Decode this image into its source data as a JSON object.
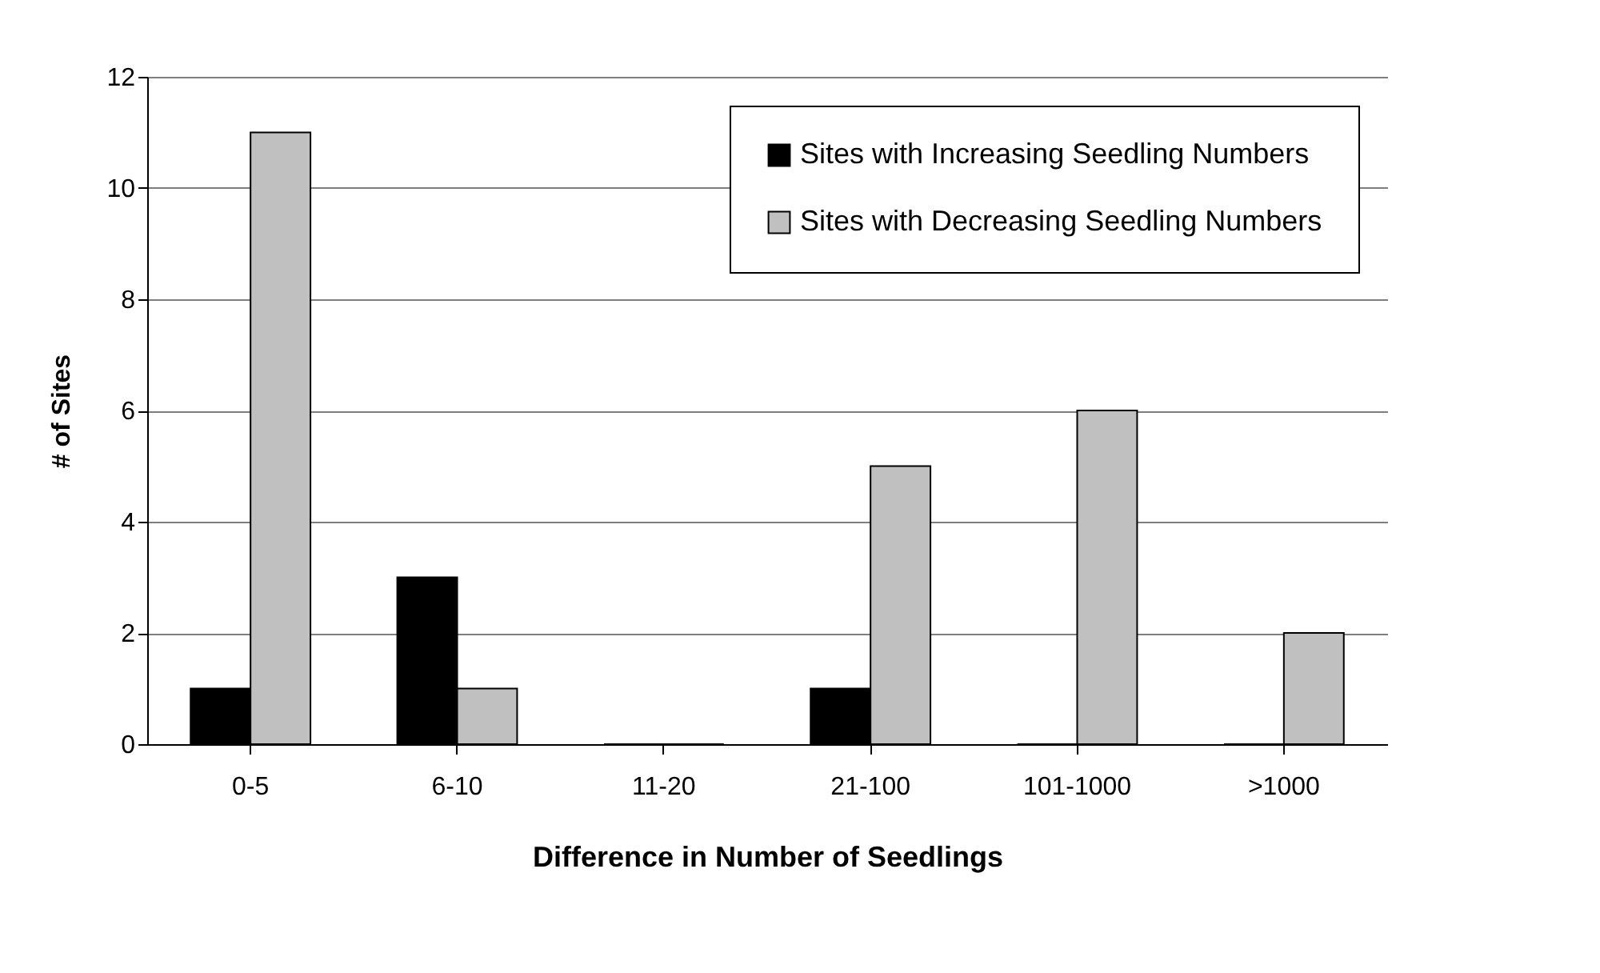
{
  "chart_data": {
    "type": "bar",
    "xlabel": "Difference in Number of Seedlings",
    "ylabel": "# of Sites",
    "categories": [
      "0-5",
      "6-10",
      "11-20",
      "21-100",
      "101-1000",
      ">1000"
    ],
    "series": [
      {
        "name": "Sites with Increasing Seedling Numbers",
        "color": "#000000",
        "values": [
          1,
          3,
          0,
          1,
          0,
          0
        ]
      },
      {
        "name": "Sites with Decreasing Seedling Numbers",
        "color": "#c0c0c0",
        "values": [
          11,
          1,
          0,
          5,
          6,
          2
        ]
      }
    ],
    "ylim": [
      0,
      12
    ],
    "yticks": [
      0,
      2,
      4,
      6,
      8,
      10,
      12
    ],
    "grid": "y",
    "legend": "top right"
  }
}
